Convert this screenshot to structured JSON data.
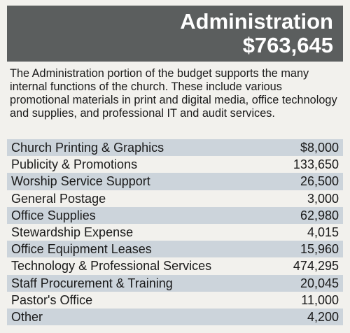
{
  "header": {
    "title": "Administration",
    "amount": "$763,645"
  },
  "description": "The Administration portion of the budget supports the many internal functions of the church. These include various promotional materials in print and digital media, office technology and supplies, and professional IT and audit services.",
  "table": {
    "rows": [
      [
        "Church Printing & Graphics",
        "$8,000"
      ],
      [
        "Publicity & Promotions",
        "133,650"
      ],
      [
        "Worship Service Support",
        "26,500"
      ],
      [
        "General Postage",
        "3,000"
      ],
      [
        "Office Supplies",
        "62,980"
      ],
      [
        "Stewardship Expense",
        "4,015"
      ],
      [
        "Office Equipment Leases",
        "15,960"
      ],
      [
        "Technology & Professional Services",
        "474,295"
      ],
      [
        "Staff Procurement & Training",
        "20,045"
      ],
      [
        "Pastor's Office",
        "11,000"
      ],
      [
        "Other",
        "4,200"
      ]
    ]
  }
}
